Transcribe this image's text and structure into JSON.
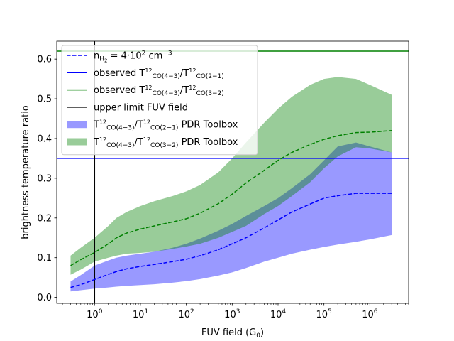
{
  "chart_data": {
    "type": "area",
    "xlabel": "FUV field (G",
    "xlabel_sub": "0",
    "xlabel_end": ")",
    "ylabel": "brightness temperature ratio",
    "xscale": "log",
    "xlim": [
      0.15,
      7000000
    ],
    "ylim": [
      -0.015,
      0.645
    ],
    "yticks": [
      0.0,
      0.1,
      0.2,
      0.3,
      0.4,
      0.5,
      0.6
    ],
    "ytick_labels": [
      "0.0",
      "0.1",
      "0.2",
      "0.3",
      "0.4",
      "0.5",
      "0.6"
    ],
    "xticks": [
      1,
      10,
      100,
      1000,
      10000,
      100000,
      1000000
    ],
    "xtick_labels": [
      {
        "base": "10",
        "exp": "0"
      },
      {
        "base": "10",
        "exp": "1"
      },
      {
        "base": "10",
        "exp": "2"
      },
      {
        "base": "10",
        "exp": "3"
      },
      {
        "base": "10",
        "exp": "4"
      },
      {
        "base": "10",
        "exp": "5"
      },
      {
        "base": "10",
        "exp": "6"
      }
    ],
    "x": [
      0.3,
      0.5,
      1,
      2,
      3,
      5,
      10,
      20,
      50,
      100,
      200,
      500,
      1000,
      2000,
      5000,
      10000,
      20000,
      50000,
      100000,
      200000,
      500000,
      1000000,
      3000000
    ],
    "series": [
      {
        "name": "T12CO(4-3)/T12CO(2-1) PDR Toolbox",
        "kind": "band",
        "color": "#0000ff",
        "lower": [
          0.015,
          0.018,
          0.022,
          0.025,
          0.027,
          0.029,
          0.031,
          0.033,
          0.037,
          0.041,
          0.046,
          0.055,
          0.063,
          0.074,
          0.09,
          0.1,
          0.11,
          0.12,
          0.127,
          0.133,
          0.14,
          0.146,
          0.157
        ],
        "upper": [
          0.04,
          0.056,
          0.08,
          0.093,
          0.1,
          0.105,
          0.11,
          0.115,
          0.125,
          0.135,
          0.148,
          0.168,
          0.185,
          0.205,
          0.23,
          0.25,
          0.275,
          0.31,
          0.345,
          0.38,
          0.39,
          0.38,
          0.365
        ]
      },
      {
        "name": "T12CO(4-3)/T12CO(3-2) PDR Toolbox",
        "kind": "band",
        "color": "#008000",
        "lower": [
          0.057,
          0.07,
          0.09,
          0.1,
          0.105,
          0.11,
          0.112,
          0.115,
          0.122,
          0.128,
          0.135,
          0.15,
          0.165,
          0.18,
          0.21,
          0.23,
          0.255,
          0.29,
          0.325,
          0.355,
          0.378,
          0.375,
          0.365
        ],
        "upper": [
          0.105,
          0.125,
          0.15,
          0.18,
          0.2,
          0.215,
          0.23,
          0.242,
          0.255,
          0.267,
          0.283,
          0.315,
          0.35,
          0.39,
          0.44,
          0.475,
          0.505,
          0.535,
          0.55,
          0.555,
          0.55,
          0.535,
          0.51
        ]
      },
      {
        "name": "nH2 = 4·10^2 cm^-3 (blue)",
        "kind": "dashed-line",
        "color": "#0000ff",
        "y": [
          0.025,
          0.032,
          0.045,
          0.058,
          0.065,
          0.072,
          0.078,
          0.083,
          0.09,
          0.096,
          0.105,
          0.12,
          0.135,
          0.15,
          0.175,
          0.195,
          0.215,
          0.235,
          0.25,
          0.256,
          0.262,
          0.262,
          0.262
        ]
      },
      {
        "name": "nH2 = 4·10^2 cm^-3 (green)",
        "kind": "dashed-line",
        "color": "#008000",
        "y": [
          0.08,
          0.095,
          0.113,
          0.135,
          0.15,
          0.162,
          0.172,
          0.18,
          0.19,
          0.198,
          0.212,
          0.236,
          0.26,
          0.288,
          0.32,
          0.345,
          0.365,
          0.385,
          0.398,
          0.407,
          0.415,
          0.416,
          0.42
        ]
      }
    ],
    "hlines": [
      {
        "name": "observed T12CO(4-3)/T12CO(2-1)",
        "y": 0.35,
        "color": "#0000ff"
      },
      {
        "name": "observed T12CO(4-3)/T12CO(3-2)",
        "y": 0.62,
        "color": "#008000"
      }
    ],
    "vlines": [
      {
        "name": "upper limit FUV field",
        "x": 1,
        "color": "#000000"
      }
    ],
    "legend": {
      "location": "top-left",
      "entries": [
        {
          "kind": "dashed-line",
          "color": "#0000ff",
          "base": "n",
          "sub": "H",
          "subsub": "2",
          "mid": " = 4·10",
          "sup": "2",
          "tail": " cm",
          "sup2": "−3"
        },
        {
          "kind": "line",
          "color": "#0000ff",
          "prefix": "observed T",
          "sup1": "12",
          "sub1": "CO(4−3)",
          "slash": "/T",
          "sup2": "12",
          "sub2": "CO(2−1)",
          "suffix": ""
        },
        {
          "kind": "line",
          "color": "#008000",
          "prefix": "observed T",
          "sup1": "12",
          "sub1": "CO(4−3)",
          "slash": "/T",
          "sup2": "12",
          "sub2": "CO(3−2)",
          "suffix": ""
        },
        {
          "kind": "line",
          "color": "#000000",
          "text": "upper limit FUV field"
        },
        {
          "kind": "patch",
          "color": "#9999ff",
          "prefix": "T",
          "sup1": "12",
          "sub1": "CO(4−3)",
          "slash": "/T",
          "sup2": "12",
          "sub2": "CO(2−1)",
          "suffix": " PDR Toolbox"
        },
        {
          "kind": "patch",
          "color": "#99cc99",
          "prefix": "T",
          "sup1": "12",
          "sub1": "CO(4−3)",
          "slash": "/T",
          "sup2": "12",
          "sub2": "CO(3−2)",
          "suffix": " PDR Toolbox"
        }
      ]
    }
  }
}
